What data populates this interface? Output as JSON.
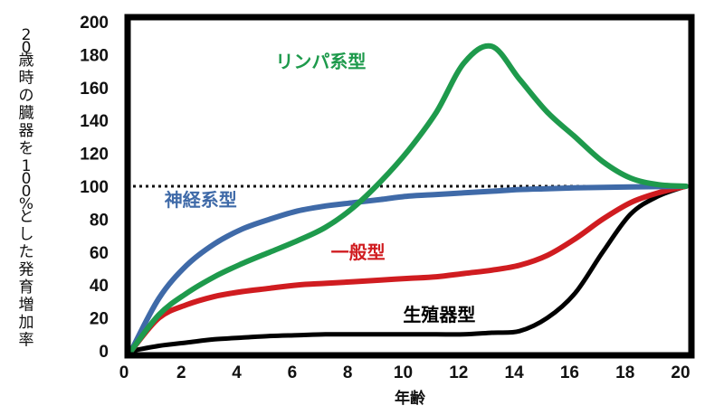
{
  "chart_data": {
    "type": "line",
    "title": "",
    "xlabel": "年齢",
    "ylabel": "20歳時の臓器を100%とした発育増加率",
    "xlim": [
      0,
      20
    ],
    "ylim": [
      0,
      200
    ],
    "xticks": [
      0,
      2,
      4,
      6,
      8,
      10,
      12,
      14,
      16,
      18,
      20
    ],
    "yticks": [
      0,
      20,
      40,
      60,
      80,
      100,
      120,
      140,
      160,
      180,
      200
    ],
    "grid": false,
    "reference_line": {
      "y": 100,
      "style": "dotted",
      "color": "#111111"
    },
    "x": [
      0,
      1,
      2,
      3,
      4,
      5,
      6,
      7,
      8,
      9,
      10,
      11,
      12,
      13,
      14,
      15,
      16,
      17,
      18,
      19,
      20
    ],
    "series": [
      {
        "name": "リンパ系型",
        "color": "#1e9a4c",
        "label_pos": [
          5.2,
          172
        ],
        "values": [
          0,
          22,
          35,
          45,
          53,
          60,
          67,
          75,
          87,
          103,
          122,
          145,
          175,
          185,
          165,
          145,
          130,
          115,
          105,
          101,
          100
        ]
      },
      {
        "name": "神経系型",
        "color": "#3f6aa8",
        "label_pos": [
          1.2,
          88
        ],
        "values": [
          0,
          32,
          52,
          65,
          74,
          80,
          85,
          88,
          90,
          92,
          94,
          95,
          96,
          97,
          98,
          98.5,
          99,
          99.3,
          99.6,
          99.8,
          100
        ]
      },
      {
        "name": "一般型",
        "color": "#d01c20",
        "label_pos": [
          7.2,
          56
        ],
        "values": [
          0,
          20,
          28,
          33,
          36,
          38,
          40,
          41,
          42,
          43,
          44,
          45,
          47,
          49,
          52,
          58,
          68,
          80,
          90,
          96,
          100
        ]
      },
      {
        "name": "生殖器型",
        "color": "#000000",
        "label_pos": [
          9.8,
          18
        ],
        "values": [
          0,
          3,
          5,
          7,
          8,
          9,
          9.5,
          10,
          10,
          10,
          10,
          10,
          10,
          11,
          12,
          20,
          35,
          60,
          83,
          94,
          100
        ]
      }
    ],
    "legend": "inline labels"
  }
}
